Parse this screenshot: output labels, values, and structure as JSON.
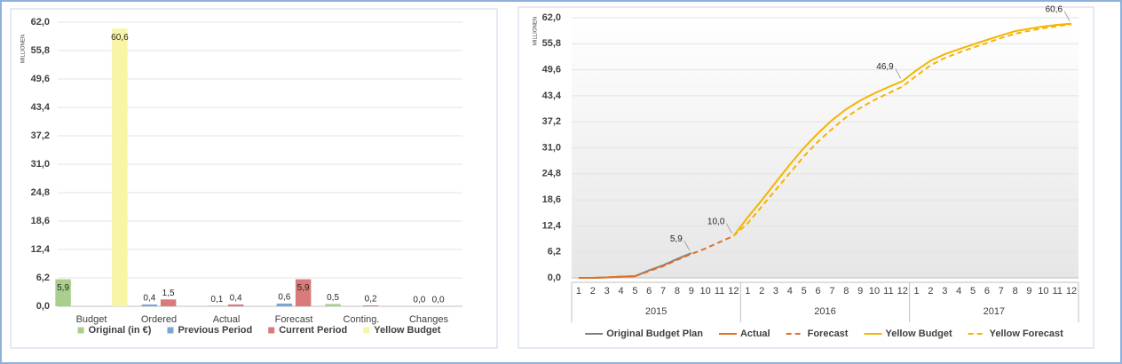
{
  "chart_data": [
    {
      "type": "bar",
      "y_label": "MILLIONEN",
      "categories": [
        "Budget",
        "Ordered",
        "Actual",
        "Forecast",
        "Conting.",
        "Changes"
      ],
      "series": [
        {
          "name": "Original (in €)",
          "color": "#a9cf8d",
          "values": [
            5.9,
            null,
            null,
            null,
            0.5,
            null
          ],
          "value_labels": [
            "5,9",
            null,
            null,
            null,
            "0,5",
            null
          ]
        },
        {
          "name": "Previous Period",
          "color": "#7aa6d6",
          "values": [
            null,
            0.4,
            0.1,
            0.6,
            null,
            0.0
          ],
          "value_labels": [
            null,
            "0,4",
            "0,1",
            "0,6",
            null,
            "0,0"
          ]
        },
        {
          "name": "Current Period",
          "color": "#d97b7b",
          "values": [
            null,
            1.5,
            0.4,
            5.9,
            0.2,
            0.0
          ],
          "value_labels": [
            null,
            "1,5",
            "0,4",
            "5,9",
            "0,2",
            "0,0"
          ]
        },
        {
          "name": "Yellow Budget",
          "color": "#f9f5a6",
          "values": [
            60.6,
            null,
            null,
            null,
            null,
            null
          ],
          "value_labels": [
            "60,6",
            null,
            null,
            null,
            null,
            null
          ]
        }
      ],
      "ylim": [
        0,
        62
      ],
      "yticks": [
        {
          "value": 0,
          "label": "0,0"
        },
        {
          "value": 6.2,
          "label": "6,2"
        },
        {
          "value": 12.4,
          "label": "12,4"
        },
        {
          "value": 18.6,
          "label": "18,6"
        },
        {
          "value": 24.8,
          "label": "24,8"
        },
        {
          "value": 31,
          "label": "31,0"
        },
        {
          "value": 37.2,
          "label": "37,2"
        },
        {
          "value": 43.4,
          "label": "43,4"
        },
        {
          "value": 49.6,
          "label": "49,6"
        },
        {
          "value": 55.8,
          "label": "55,8"
        },
        {
          "value": 62,
          "label": "62,0"
        }
      ],
      "grid": true,
      "legend": "bottom"
    },
    {
      "type": "line",
      "y_label": "MILLIONEN",
      "categories": [
        "1",
        "2",
        "3",
        "4",
        "5",
        "6",
        "7",
        "8",
        "9",
        "10",
        "11",
        "12",
        "1",
        "2",
        "3",
        "4",
        "5",
        "6",
        "7",
        "8",
        "9",
        "10",
        "11",
        "12",
        "1",
        "2",
        "3",
        "4",
        "5",
        "6",
        "7",
        "8",
        "9",
        "10",
        "11",
        "12"
      ],
      "category_groups": [
        "2015",
        "2016",
        "2017"
      ],
      "series": [
        {
          "name": "Original Budget Plan",
          "color": "#7f7f7f",
          "dash": false,
          "values": [
            0,
            0,
            0.1,
            0.3,
            0.4,
            1.8,
            3.0,
            4.5,
            5.9,
            null,
            null,
            null,
            null,
            null,
            null,
            null,
            null,
            null,
            null,
            null,
            null,
            null,
            null,
            null,
            null,
            null,
            null,
            null,
            null,
            null,
            null,
            null,
            null,
            null,
            null,
            null
          ],
          "value_labels": [
            null,
            null,
            null,
            null,
            null,
            null,
            null,
            null,
            "5,9",
            null,
            null,
            null,
            null,
            null,
            null,
            null,
            null,
            null,
            null,
            null,
            null,
            null,
            null,
            null,
            null,
            null,
            null,
            null,
            null,
            null,
            null,
            null,
            null,
            null,
            null,
            null
          ]
        },
        {
          "name": "Actual",
          "color": "#e07020",
          "dash": false,
          "values": [
            0,
            0,
            0.1,
            0.3,
            0.4,
            null,
            null,
            null,
            null,
            null,
            null,
            null,
            null,
            null,
            null,
            null,
            null,
            null,
            null,
            null,
            null,
            null,
            null,
            null,
            null,
            null,
            null,
            null,
            null,
            null,
            null,
            null,
            null,
            null,
            null,
            null
          ]
        },
        {
          "name": "Forecast",
          "color": "#e07020",
          "dash": true,
          "values": [
            null,
            null,
            null,
            null,
            0.4,
            1.6,
            2.8,
            4.3,
            5.7,
            7.0,
            8.5,
            10.0,
            null,
            null,
            null,
            null,
            null,
            null,
            null,
            null,
            null,
            null,
            null,
            null,
            null,
            null,
            null,
            null,
            null,
            null,
            null,
            null,
            null,
            null,
            null,
            null
          ],
          "value_labels": [
            null,
            null,
            null,
            null,
            null,
            null,
            null,
            null,
            null,
            null,
            null,
            "10,0",
            null,
            null,
            null,
            null,
            null,
            null,
            null,
            null,
            null,
            null,
            null,
            null,
            null,
            null,
            null,
            null,
            null,
            null,
            null,
            null,
            null,
            null,
            null,
            null
          ]
        },
        {
          "name": "Yellow Budget",
          "color": "#f5b400",
          "dash": false,
          "values": [
            null,
            null,
            null,
            null,
            null,
            null,
            null,
            null,
            null,
            null,
            null,
            10.0,
            14.4,
            18.5,
            22.8,
            27,
            31,
            34.5,
            37.6,
            40.2,
            42.3,
            44,
            45.5,
            46.9,
            49.5,
            51.8,
            53.3,
            54.5,
            55.6,
            56.7,
            57.8,
            58.8,
            59.4,
            59.9,
            60.3,
            60.6
          ],
          "value_labels": [
            null,
            null,
            null,
            null,
            null,
            null,
            null,
            null,
            null,
            null,
            null,
            null,
            null,
            null,
            null,
            null,
            null,
            null,
            null,
            null,
            null,
            null,
            null,
            "46,9",
            null,
            null,
            null,
            null,
            null,
            null,
            null,
            null,
            null,
            null,
            null,
            "60,6"
          ]
        },
        {
          "name": "Yellow Forecast",
          "color": "#f5b400",
          "dash": true,
          "values": [
            null,
            null,
            null,
            null,
            null,
            null,
            null,
            null,
            null,
            null,
            null,
            10.0,
            13,
            17,
            21,
            25,
            29,
            32.5,
            35.5,
            38.3,
            40.5,
            42.4,
            44,
            45.6,
            48.2,
            50.7,
            52.4,
            53.7,
            54.9,
            56,
            57.2,
            58.2,
            58.9,
            59.5,
            60,
            60.5
          ]
        }
      ],
      "ylim": [
        0,
        62
      ],
      "yticks": [
        {
          "value": 0,
          "label": "0,0"
        },
        {
          "value": 6.2,
          "label": "6,2"
        },
        {
          "value": 12.4,
          "label": "12,4"
        },
        {
          "value": 18.6,
          "label": "18,6"
        },
        {
          "value": 24.8,
          "label": "24,8"
        },
        {
          "value": 31,
          "label": "31,0"
        },
        {
          "value": 37.2,
          "label": "37,2"
        },
        {
          "value": 43.4,
          "label": "43,4"
        },
        {
          "value": 49.6,
          "label": "49,6"
        },
        {
          "value": 55.8,
          "label": "55,8"
        },
        {
          "value": 62,
          "label": "62,0"
        }
      ],
      "grid": true,
      "legend": "bottom"
    }
  ]
}
